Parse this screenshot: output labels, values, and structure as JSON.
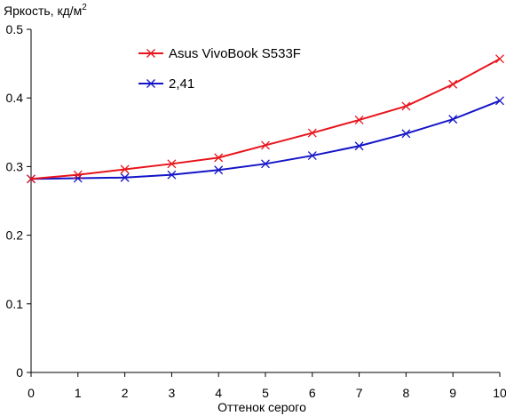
{
  "chart_data": {
    "type": "line",
    "ylabel": "Яркость, кд/м",
    "ylabel_sup": "2",
    "xlabel": "Оттенок серого",
    "x": [
      0,
      1,
      2,
      3,
      4,
      5,
      6,
      7,
      8,
      9,
      10
    ],
    "xlim": [
      0,
      10
    ],
    "ylim": [
      0,
      0.5
    ],
    "y_ticks": [
      0,
      0.1,
      0.2,
      0.3,
      0.4,
      0.5
    ],
    "x_tick_labels": [
      "0",
      "1",
      "2",
      "3",
      "4",
      "5",
      "6",
      "7",
      "8",
      "9",
      "10"
    ],
    "y_tick_labels": [
      "0",
      "0.1",
      "0.2",
      "0.3",
      "0.4",
      "0.5"
    ],
    "grid": false,
    "legend_position": "top-center",
    "series": [
      {
        "name": "Asus VivoBook S533F",
        "color": "#e8141c",
        "marker": "x",
        "values": [
          0.282,
          0.288,
          0.296,
          0.304,
          0.313,
          0.331,
          0.349,
          0.368,
          0.388,
          0.42,
          0.457
        ]
      },
      {
        "name": "2,41",
        "color": "#1414c8",
        "marker": "x",
        "values": [
          0.282,
          0.283,
          0.284,
          0.288,
          0.295,
          0.304,
          0.316,
          0.33,
          0.348,
          0.369,
          0.396
        ]
      }
    ]
  }
}
